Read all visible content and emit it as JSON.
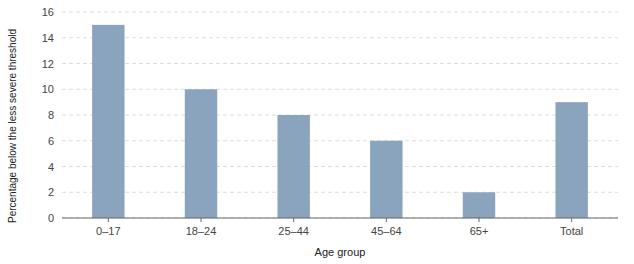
{
  "chart_data": {
    "type": "bar",
    "categories": [
      "0–17",
      "18–24",
      "25–44",
      "45–64",
      "65+",
      "Total"
    ],
    "values": [
      15.0,
      10.0,
      8.0,
      6.0,
      2.0,
      9.0
    ],
    "color": "#8aa4be",
    "xlabel": "Age group",
    "ylabel": "Percentage below the less severe threshold",
    "ylim": [
      0,
      16
    ],
    "yticks": [
      0,
      2,
      4,
      6,
      8,
      10,
      12,
      14,
      16
    ],
    "grid": true
  }
}
